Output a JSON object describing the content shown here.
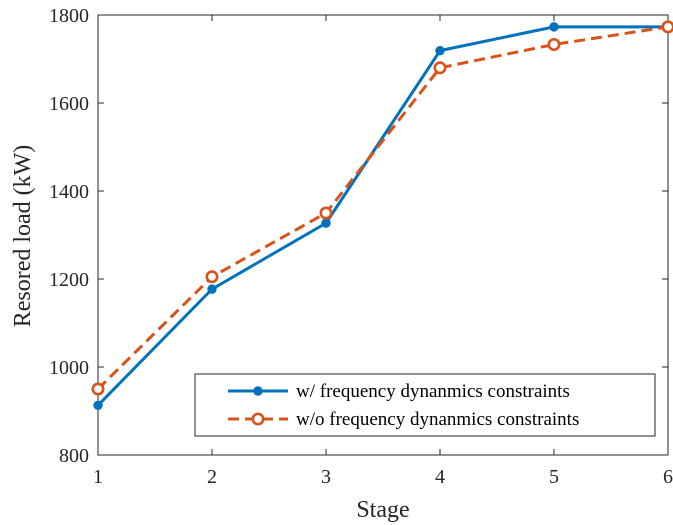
{
  "chart_data": {
    "type": "line",
    "title": "",
    "xlabel": "Stage",
    "ylabel": "Resored load (kW)",
    "x": [
      1,
      2,
      3,
      4,
      5,
      6
    ],
    "xlim": [
      1,
      6
    ],
    "ylim": [
      800,
      1800
    ],
    "xticks": [
      "1",
      "2",
      "3",
      "4",
      "5",
      "6"
    ],
    "yticks": [
      "800",
      "1000",
      "1200",
      "1400",
      "1600",
      "1800"
    ],
    "grid": false,
    "legend_position": "bottom-right",
    "series": [
      {
        "name": "w/ frequency dynanmics constraints",
        "values": [
          913,
          1177,
          1327,
          1719,
          1773,
          1773
        ],
        "color": "#0072BD",
        "line_style": "solid",
        "marker": "filled-circle"
      },
      {
        "name": "w/o frequency dynanmics constraints",
        "values": [
          950,
          1205,
          1350,
          1680,
          1733,
          1773
        ],
        "color": "#D95319",
        "line_style": "dashed",
        "marker": "open-circle"
      }
    ]
  }
}
